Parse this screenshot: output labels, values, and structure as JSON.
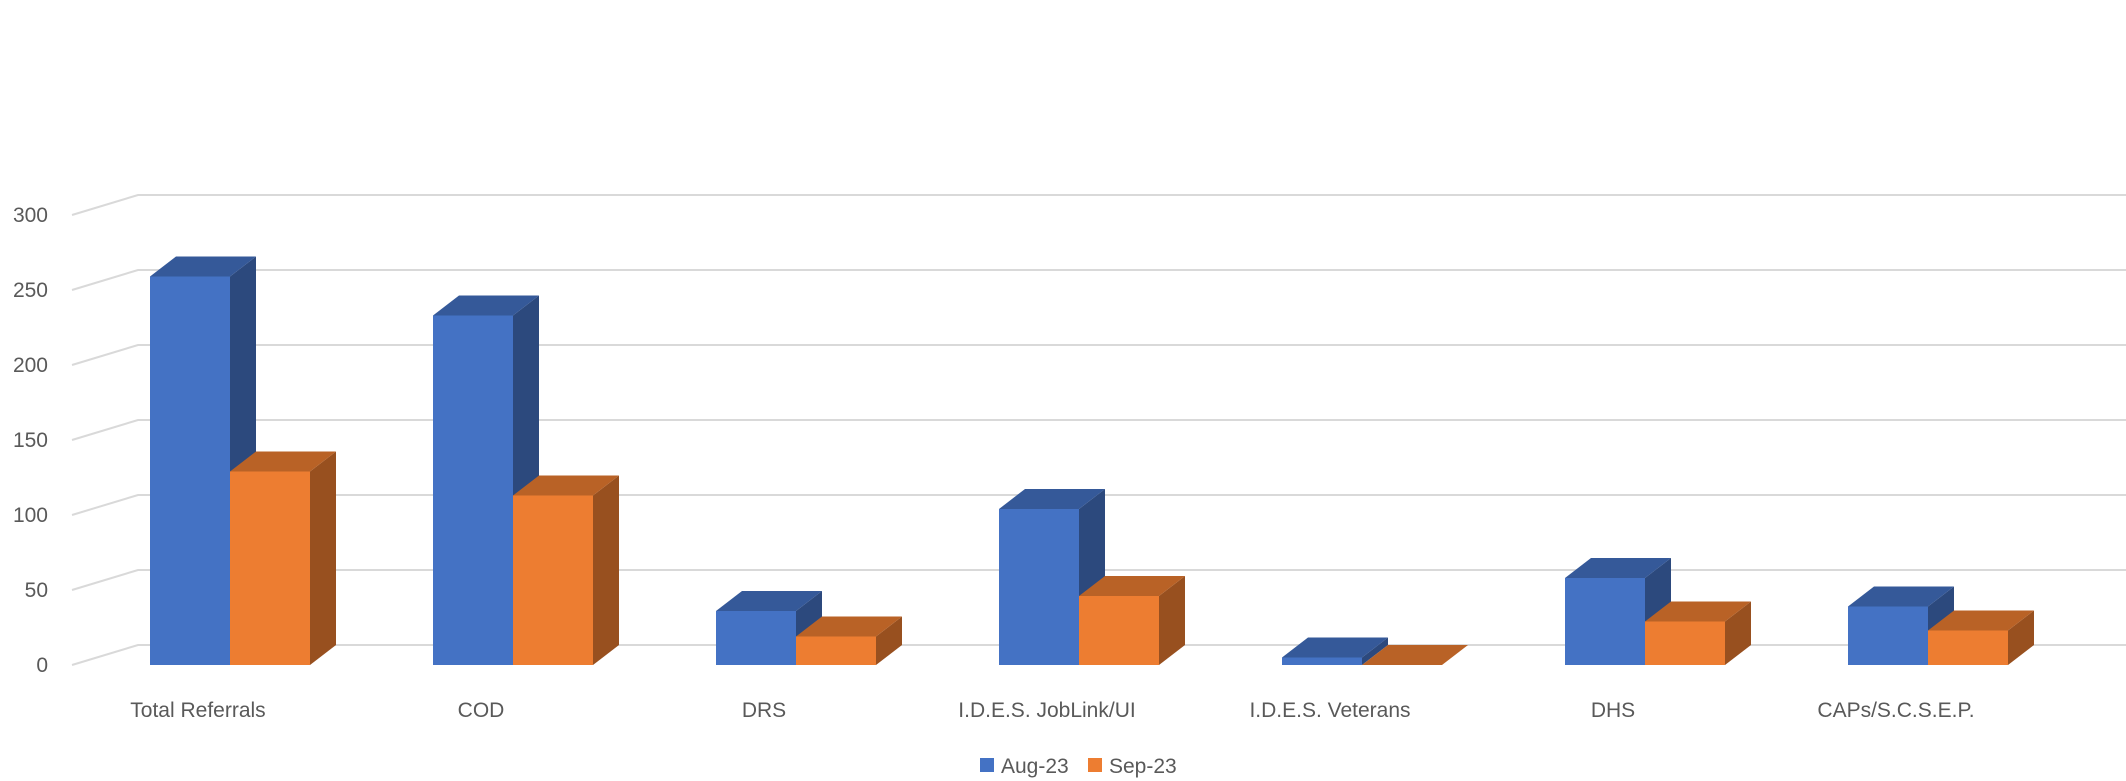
{
  "chart_data": {
    "type": "bar",
    "title": "",
    "xlabel": "",
    "ylabel": "",
    "ylim": [
      0,
      300
    ],
    "yticks": [
      0,
      50,
      100,
      150,
      200,
      250,
      300
    ],
    "categories": [
      "Total Referrals",
      "COD",
      "DRS",
      "I.D.E.S. JobLink/UI",
      "I.D.E.S. Veterans",
      "DHS",
      "CAPs/S.C.S.E.P."
    ],
    "series": [
      {
        "name": "Aug-23",
        "color": "#4472C4",
        "values": [
          259,
          233,
          36,
          104,
          5,
          58,
          39
        ]
      },
      {
        "name": "Sep-23",
        "color": "#ED7D31",
        "values": [
          129,
          113,
          19,
          46,
          0,
          29,
          23
        ]
      }
    ],
    "grid": true,
    "legend_position": "bottom",
    "style": "3d-clustered-column"
  }
}
